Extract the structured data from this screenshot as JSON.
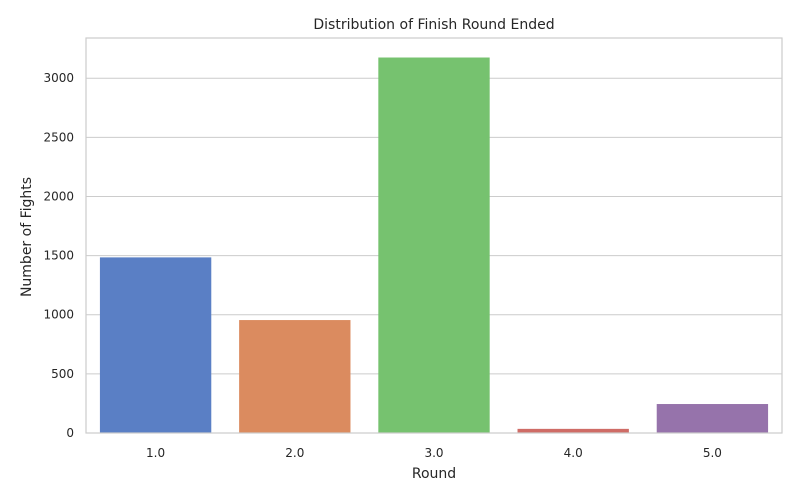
{
  "chart_data": {
    "type": "bar",
    "title": "Distribution of Finish Round Ended",
    "xlabel": "Round",
    "ylabel": "Number of Fights",
    "categories": [
      "1.0",
      "2.0",
      "3.0",
      "4.0",
      "5.0"
    ],
    "values": [
      1485,
      955,
      3175,
      35,
      245
    ],
    "colors": [
      "#5a7fc5",
      "#db8b5f",
      "#76c26f",
      "#cf6c66",
      "#9673ab"
    ],
    "ylim": [
      0,
      3340
    ],
    "yticks": [
      0,
      500,
      1000,
      1500,
      2000,
      2500,
      3000
    ],
    "ytick_labels": [
      "0",
      "500",
      "1000",
      "1500",
      "2000",
      "2500",
      "3000"
    ],
    "grid": "y",
    "legend": "none"
  }
}
